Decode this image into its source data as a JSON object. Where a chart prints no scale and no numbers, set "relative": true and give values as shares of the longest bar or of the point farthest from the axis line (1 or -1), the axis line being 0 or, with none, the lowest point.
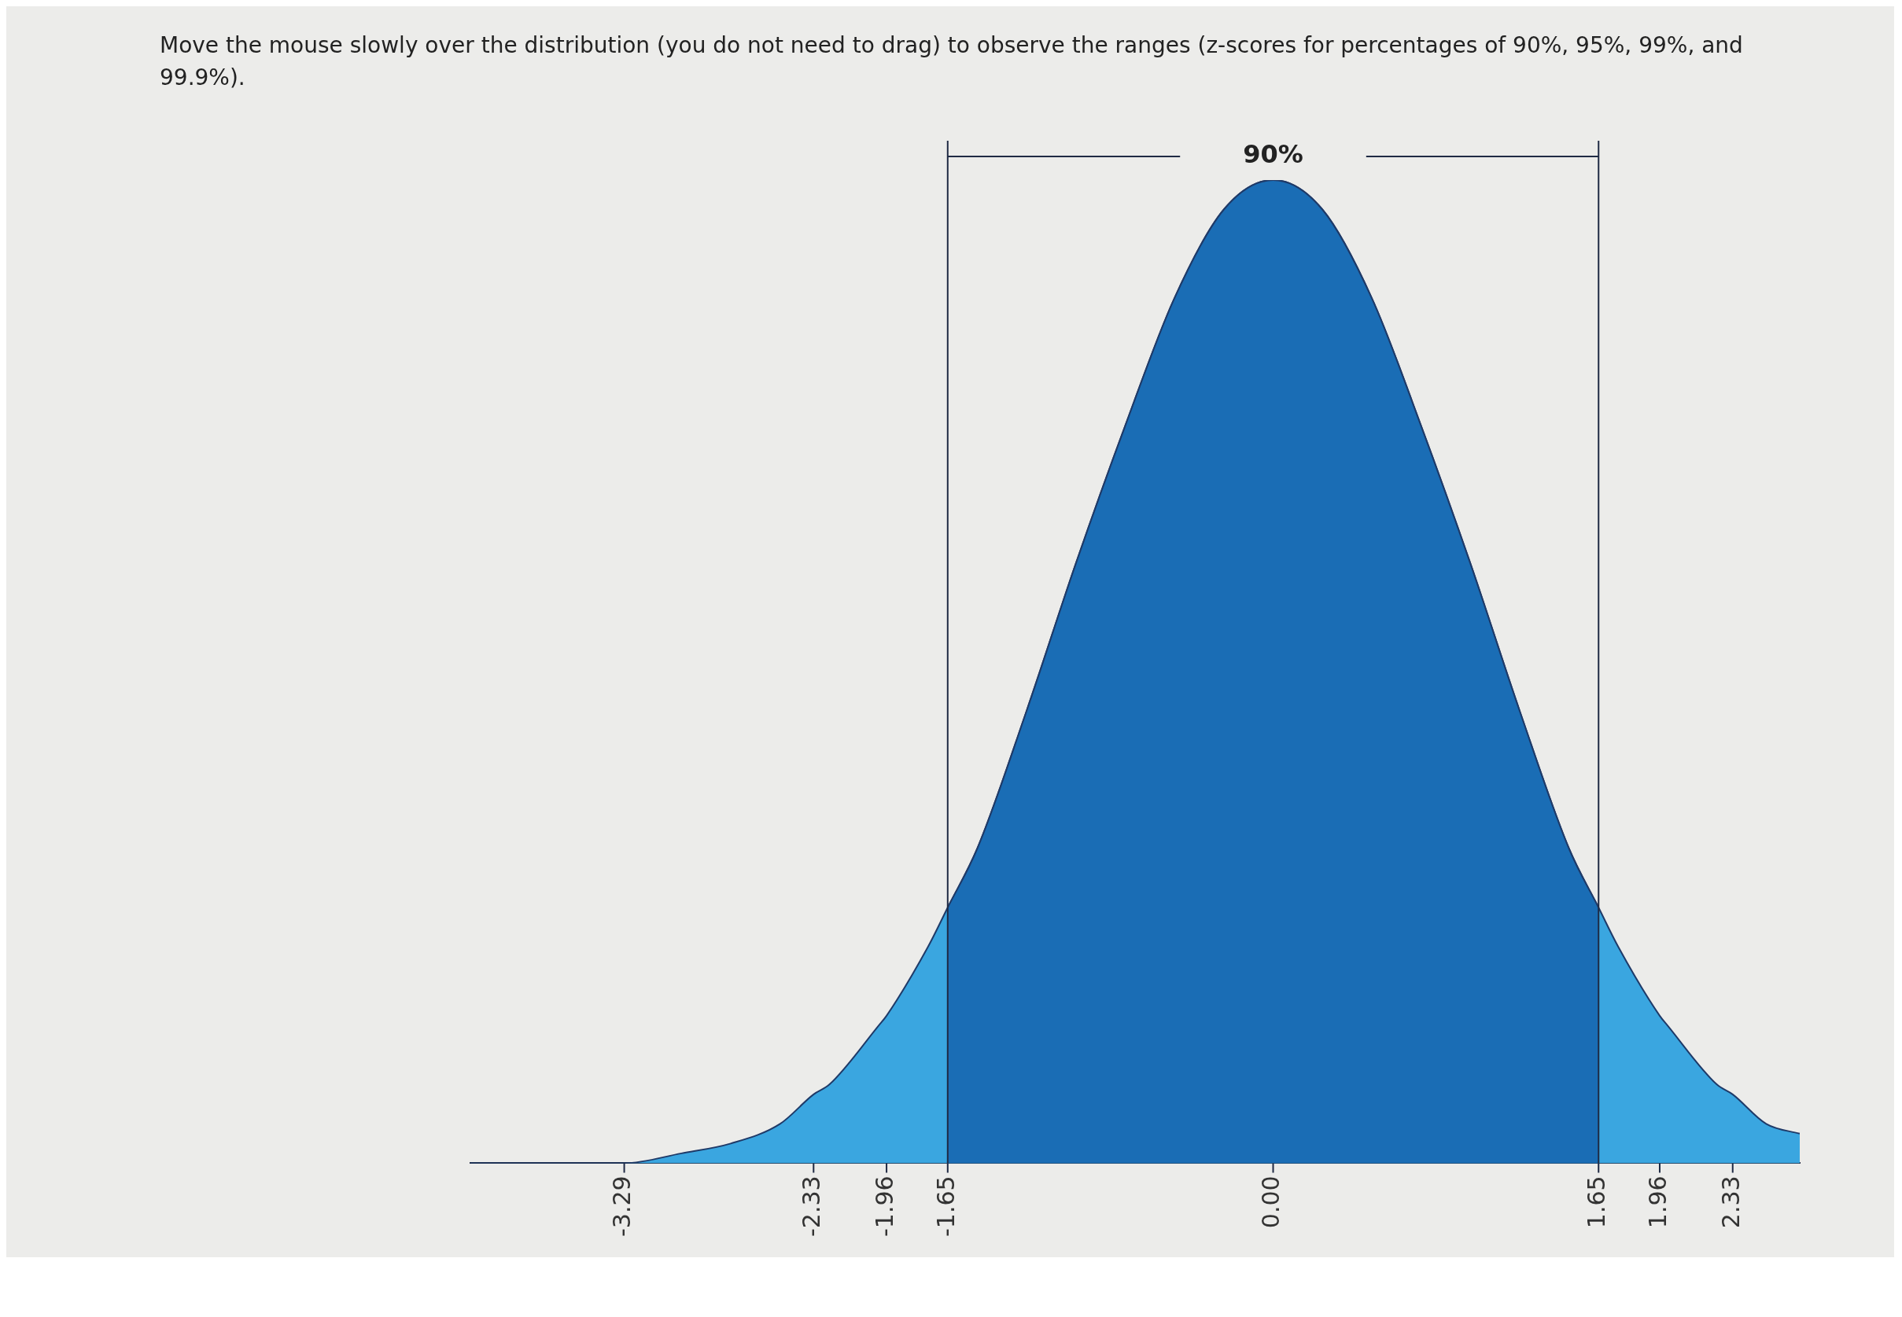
{
  "chart_data": {
    "type": "area",
    "title": "Move the mouse slowly over the distribution (you do not need to drag) to observe the ranges (z-scores for percentages of 90%, 95%, 99%, and 99.9%).",
    "relative": true,
    "x": [
      -4.07,
      -3.75,
      -3.5,
      -3.29,
      -3,
      -2.75,
      -2.5,
      -2.33,
      -2.25,
      -2,
      -1.96,
      -1.75,
      -1.65,
      -1.5,
      -1.25,
      -1,
      -0.75,
      -0.5,
      -0.25,
      0,
      0.25,
      0.5,
      0.75,
      1,
      1.25,
      1.5,
      1.65,
      1.75,
      1.96,
      2,
      2.25,
      2.33,
      2.5,
      2.67
    ],
    "xlim": [
      -4.07,
      2.67
    ],
    "xticks": [
      -3.29,
      -2.33,
      -1.96,
      -1.65,
      {
        "value": 0,
        "label": "0.00"
      },
      1.65,
      1.96,
      2.33
    ],
    "series": [
      {
        "color": "#3aa6e0",
        "values": [
          0,
          0,
          0,
          0,
          0.01,
          0.02,
          0.04,
          0.07,
          0.08,
          0.14,
          0.15,
          0.22,
          0.26,
          0.32,
          0.46,
          0.61,
          0.75,
          0.88,
          0.97,
          1,
          0.97,
          0.88,
          0.75,
          0.61,
          0.46,
          0.32,
          0.26,
          0.22,
          0.15,
          0.14,
          0.08,
          0.07,
          0.04,
          0.03
        ]
      },
      {
        "color": "#1a6db5",
        "values": [
          null,
          null,
          null,
          null,
          null,
          null,
          null,
          null,
          null,
          null,
          null,
          null,
          0.26,
          0.32,
          0.46,
          0.61,
          0.75,
          0.88,
          0.97,
          1,
          0.97,
          0.88,
          0.75,
          0.61,
          0.46,
          0.32,
          0.26,
          null,
          null,
          null,
          null,
          null,
          null,
          null
        ]
      }
    ],
    "ref_lines": [
      {
        "axis": "x",
        "value": -1.65
      },
      {
        "axis": "x",
        "value": 1.65
      }
    ],
    "annotations": [
      "90%"
    ],
    "grid": false,
    "legend": false
  }
}
